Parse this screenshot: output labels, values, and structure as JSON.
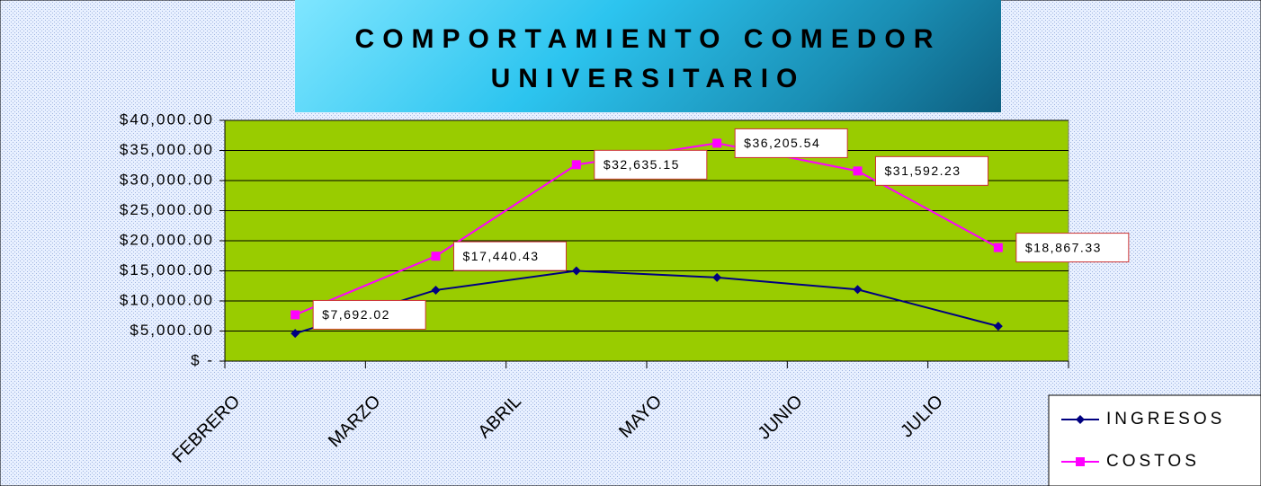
{
  "chart_data": {
    "type": "line",
    "title": "COMPORTAMIENTO COMEDOR UNIVERSITARIO",
    "categories": [
      "FEBRERO",
      "MARZO",
      "ABRIL",
      "MAYO",
      "JUNIO",
      "JULIO"
    ],
    "series": [
      {
        "name": "INGRESOS",
        "color": "#000080",
        "values": [
          4600,
          11800,
          15000,
          13900,
          11900,
          5800
        ]
      },
      {
        "name": "COSTOS",
        "color": "#ff00ff",
        "values": [
          7692.02,
          17440.43,
          32635.15,
          36205.54,
          31592.23,
          18867.33
        ],
        "value_labels": [
          "$7,692.02",
          "$17,440.43",
          "$32,635.15",
          "$36,205.54",
          "$31,592.23",
          "$18,867.33"
        ]
      }
    ],
    "ylim": [
      0,
      40000
    ],
    "yticks": [
      {
        "value": 0,
        "label": "$ -"
      },
      {
        "value": 5000,
        "label": "$5,000.00"
      },
      {
        "value": 10000,
        "label": "$10,000.00"
      },
      {
        "value": 15000,
        "label": "$15,000.00"
      },
      {
        "value": 20000,
        "label": "$20,000.00"
      },
      {
        "value": 25000,
        "label": "$25,000.00"
      },
      {
        "value": 30000,
        "label": "$30,000.00"
      },
      {
        "value": 35000,
        "label": "$35,000.00"
      },
      {
        "value": 40000,
        "label": "$40,000.00"
      }
    ],
    "grid": true,
    "plot_color": "#99cc00",
    "legend": "bottom-right"
  }
}
